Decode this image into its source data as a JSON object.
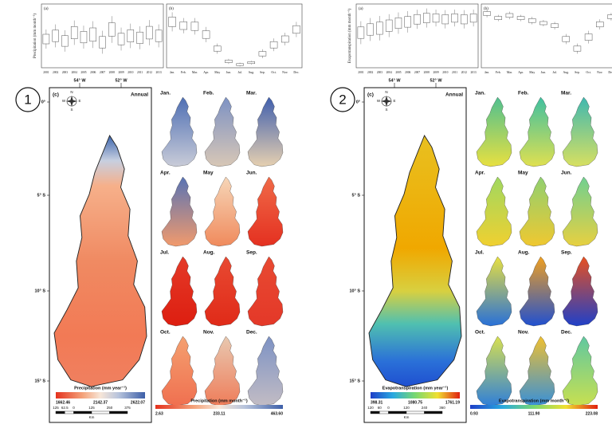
{
  "years": [
    "2001",
    "2002",
    "2003",
    "2004",
    "2005",
    "2006",
    "2007",
    "2008",
    "2009",
    "2010",
    "2011",
    "2012",
    "2013"
  ],
  "months": [
    "Jan.",
    "Feb.",
    "Mar.",
    "Apr.",
    "May",
    "Jun.",
    "Jul.",
    "Aug.",
    "Sep.",
    "Oct.",
    "Nov.",
    "Dec."
  ],
  "longitudes": [
    "54° W",
    "52° W"
  ],
  "latitudes": [
    "0°",
    "5° S",
    "10° S",
    "15° S"
  ],
  "compass": [
    "N",
    "S",
    "E",
    "W"
  ],
  "panels": [
    {
      "number": "1",
      "box_a_label": "(a)",
      "box_b_label": "(b)",
      "y_axis_label": "Precipitation (mm month⁻¹)",
      "map_label": "(c)",
      "map_title": "Annual",
      "annual_legend": {
        "title": "Precipitation (mm year⁻¹)",
        "ticks": [
          "1662.46",
          "2142.37",
          "2622.07"
        ]
      },
      "scale": {
        "values": [
          "125",
          "62.5",
          "0",
          "125",
          "250",
          "375"
        ],
        "unit": "Km"
      },
      "monthly_legend": {
        "title": "Precipitation (mm month⁻¹)",
        "ticks": [
          "2.63",
          "233.11",
          "463.60"
        ]
      }
    },
    {
      "number": "2",
      "box_a_label": "(a)",
      "box_b_label": "(b)",
      "y_axis_label": "Evapotranspiration (mm month⁻¹)",
      "map_label": "(c)",
      "map_title": "Annual",
      "annual_legend": {
        "title": "Evapotranspiration (mm year⁻¹)",
        "ticks": [
          "398.31",
          "1080.75",
          "1761.19"
        ]
      },
      "scale": {
        "values": [
          "120",
          "60",
          "0",
          "120",
          "240",
          "360"
        ],
        "unit": "Km"
      },
      "monthly_legend": {
        "title": "Evapotranspiration (mm month⁻¹)",
        "ticks": [
          "0.93",
          "111.90",
          "223.08"
        ]
      }
    }
  ]
}
